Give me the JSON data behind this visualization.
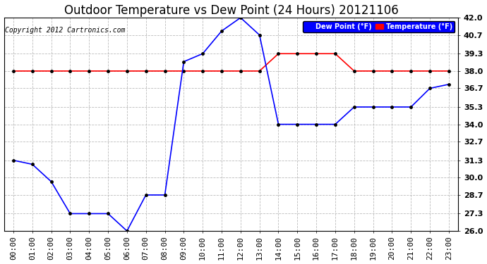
{
  "title": "Outdoor Temperature vs Dew Point (24 Hours) 20121106",
  "copyright": "Copyright 2012 Cartronics.com",
  "hours": [
    "00:00",
    "01:00",
    "02:00",
    "03:00",
    "04:00",
    "05:00",
    "06:00",
    "07:00",
    "08:00",
    "09:00",
    "10:00",
    "11:00",
    "12:00",
    "13:00",
    "14:00",
    "15:00",
    "16:00",
    "17:00",
    "18:00",
    "19:00",
    "20:00",
    "21:00",
    "22:00",
    "23:00"
  ],
  "temperature": [
    38.0,
    38.0,
    38.0,
    38.0,
    38.0,
    38.0,
    38.0,
    38.0,
    38.0,
    38.0,
    38.0,
    38.0,
    38.0,
    38.0,
    39.3,
    39.3,
    39.3,
    39.3,
    38.0,
    38.0,
    38.0,
    38.0,
    38.0,
    38.0
  ],
  "dew_point": [
    31.3,
    31.0,
    29.7,
    27.3,
    27.3,
    27.3,
    26.0,
    28.7,
    28.7,
    38.7,
    39.3,
    41.0,
    42.0,
    40.7,
    34.0,
    34.0,
    34.0,
    34.0,
    35.3,
    35.3,
    35.3,
    35.3,
    36.7,
    37.0
  ],
  "temp_color": "#ff0000",
  "dew_color": "#0000ff",
  "bg_color": "#ffffff",
  "grid_color": "#aaaaaa",
  "ylim_min": 26.0,
  "ylim_max": 42.0,
  "yticks": [
    26.0,
    27.3,
    28.7,
    30.0,
    31.3,
    32.7,
    34.0,
    35.3,
    36.7,
    38.0,
    39.3,
    40.7,
    42.0
  ],
  "legend_dew_label": "Dew Point (°F)",
  "legend_temp_label": "Temperature (°F)",
  "title_fontsize": 12,
  "axis_fontsize": 8,
  "copyright_fontsize": 7
}
